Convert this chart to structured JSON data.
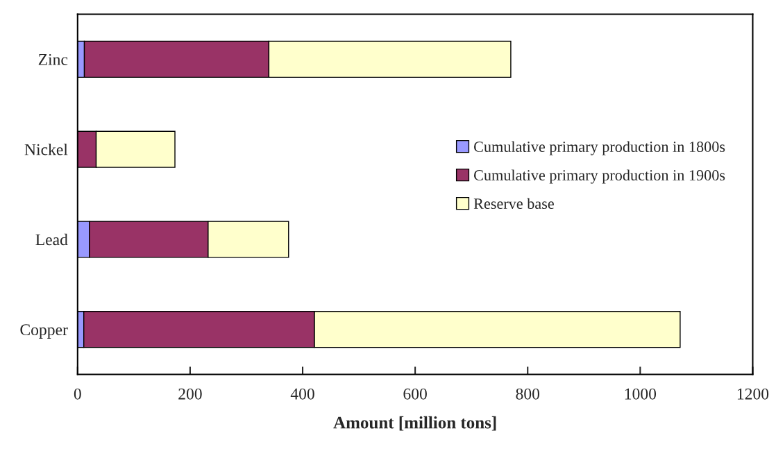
{
  "chart_data": {
    "type": "bar",
    "orientation": "horizontal",
    "stacked": true,
    "categories": [
      "Zinc",
      "Nickel",
      "Lead",
      "Copper"
    ],
    "series": [
      {
        "name": "Cumulative primary production in 1800s",
        "color": "#9999ff",
        "values": [
          12,
          0,
          21,
          11
        ]
      },
      {
        "name": "Cumulative primary production in 1900s",
        "color": "#993366",
        "values": [
          328,
          33,
          211,
          410
        ]
      },
      {
        "name": "Reserve base",
        "color": "#ffffcc",
        "values": [
          430,
          140,
          143,
          650
        ]
      }
    ],
    "xlabel": "Amount [million tons]",
    "xlim": [
      0,
      1200
    ],
    "xticks": [
      0,
      200,
      400,
      600,
      800,
      1000,
      1200
    ],
    "legend": "right",
    "grid": false
  }
}
